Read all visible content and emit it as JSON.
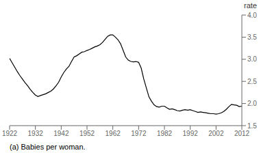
{
  "chart_data": {
    "type": "line",
    "x": [
      1922,
      1923,
      1924,
      1925,
      1926,
      1927,
      1928,
      1929,
      1930,
      1931,
      1932,
      1933,
      1934,
      1935,
      1936,
      1937,
      1938,
      1939,
      1940,
      1941,
      1942,
      1943,
      1944,
      1945,
      1946,
      1947,
      1948,
      1949,
      1950,
      1951,
      1952,
      1953,
      1954,
      1955,
      1956,
      1957,
      1958,
      1959,
      1960,
      1961,
      1962,
      1963,
      1964,
      1965,
      1966,
      1967,
      1968,
      1969,
      1970,
      1971,
      1972,
      1973,
      1974,
      1975,
      1976,
      1977,
      1978,
      1979,
      1980,
      1981,
      1982,
      1983,
      1984,
      1985,
      1986,
      1987,
      1988,
      1989,
      1990,
      1991,
      1992,
      1993,
      1994,
      1995,
      1996,
      1997,
      1998,
      1999,
      2000,
      2001,
      2002,
      2003,
      2004,
      2005,
      2006,
      2007,
      2008,
      2009,
      2010,
      2011,
      2012
    ],
    "series": [
      {
        "color": "#000000",
        "values": [
          3.02,
          2.92,
          2.82,
          2.72,
          2.63,
          2.55,
          2.47,
          2.4,
          2.32,
          2.25,
          2.19,
          2.16,
          2.18,
          2.2,
          2.22,
          2.25,
          2.28,
          2.33,
          2.4,
          2.48,
          2.6,
          2.7,
          2.78,
          2.84,
          2.95,
          3.05,
          3.08,
          3.12,
          3.16,
          3.17,
          3.2,
          3.22,
          3.25,
          3.28,
          3.3,
          3.33,
          3.38,
          3.45,
          3.52,
          3.55,
          3.55,
          3.5,
          3.44,
          3.35,
          3.2,
          3.05,
          2.98,
          2.95,
          2.94,
          2.95,
          2.93,
          2.8,
          2.55,
          2.35,
          2.15,
          2.05,
          1.97,
          1.93,
          1.92,
          1.94,
          1.94,
          1.9,
          1.87,
          1.88,
          1.86,
          1.84,
          1.83,
          1.85,
          1.86,
          1.85,
          1.86,
          1.84,
          1.82,
          1.8,
          1.81,
          1.8,
          1.79,
          1.78,
          1.77,
          1.77,
          1.76,
          1.77,
          1.79,
          1.82,
          1.87,
          1.93,
          1.98,
          1.97,
          1.96,
          1.93,
          1.94
        ]
      }
    ],
    "xlim": [
      1922,
      2012
    ],
    "xticks": [
      1922,
      1932,
      1942,
      1952,
      1962,
      1972,
      1982,
      1992,
      2002,
      2012
    ],
    "ylim": [
      1.5,
      4.0
    ],
    "yticks": [
      1.5,
      {
        "value": 2.0,
        "label": "2.0"
      },
      2.5,
      {
        "value": 3.0,
        "label": "3.0"
      },
      3.5,
      {
        "value": 4.0,
        "label": "4.0"
      }
    ],
    "ylabel": "rate",
    "footnote": "(a) Babies per woman.",
    "grid": false
  }
}
